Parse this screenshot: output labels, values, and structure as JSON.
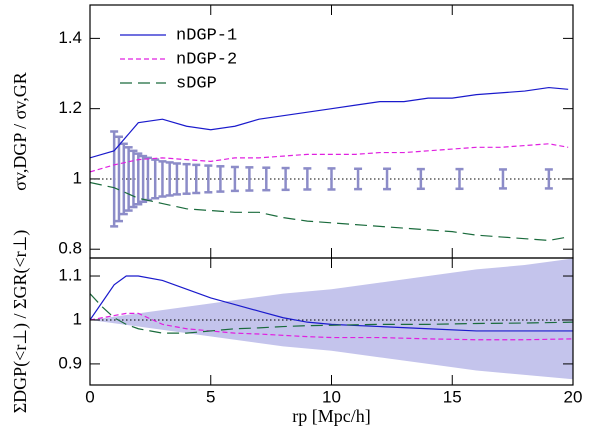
{
  "chart_data": [
    {
      "type": "line",
      "y_label": "σv,DGP / σv,GR",
      "x": [
        0,
        1,
        2,
        3,
        4,
        5,
        6,
        7,
        8,
        9,
        10,
        11,
        12,
        13,
        14,
        15,
        16,
        17,
        18,
        19,
        19.8
      ],
      "series": [
        {
          "name": "nDGP-1",
          "color": "#1a1acc",
          "linestyle": "solid",
          "values": [
            1.06,
            1.08,
            1.16,
            1.17,
            1.15,
            1.14,
            1.15,
            1.17,
            1.18,
            1.19,
            1.2,
            1.21,
            1.22,
            1.22,
            1.23,
            1.23,
            1.24,
            1.245,
            1.25,
            1.26,
            1.255
          ]
        },
        {
          "name": "nDGP-2",
          "color": "#e020e0",
          "linestyle": "short-dash",
          "values": [
            1.02,
            1.04,
            1.055,
            1.06,
            1.055,
            1.05,
            1.06,
            1.06,
            1.065,
            1.07,
            1.07,
            1.07,
            1.075,
            1.075,
            1.08,
            1.085,
            1.09,
            1.09,
            1.095,
            1.1,
            1.09
          ]
        },
        {
          "name": "sDGP",
          "color": "#1a6b3c",
          "linestyle": "long-dash",
          "values": [
            0.99,
            0.975,
            0.945,
            0.93,
            0.915,
            0.91,
            0.905,
            0.905,
            0.89,
            0.88,
            0.875,
            0.87,
            0.865,
            0.86,
            0.855,
            0.85,
            0.84,
            0.835,
            0.83,
            0.825,
            0.835
          ]
        }
      ],
      "error_bars": {
        "color": "#8c8cc8",
        "x": [
          1.0,
          1.2,
          1.4,
          1.6,
          1.8,
          2.0,
          2.2,
          2.4,
          2.7,
          3.0,
          3.3,
          3.6,
          4.0,
          4.4,
          4.9,
          5.4,
          6.0,
          6.6,
          7.3,
          8.1,
          9.0,
          10.0,
          11.1,
          12.3,
          13.7,
          15.3,
          17.1,
          19.0
        ],
        "values": [
          1,
          1,
          1,
          1,
          1,
          1,
          1,
          1,
          1,
          1,
          1,
          1,
          1,
          1,
          1,
          1,
          1,
          1,
          1,
          1,
          1,
          1,
          1,
          1,
          1,
          1,
          1,
          1
        ],
        "errors": [
          0.135,
          0.12,
          0.1,
          0.09,
          0.08,
          0.072,
          0.065,
          0.06,
          0.055,
          0.05,
          0.047,
          0.044,
          0.042,
          0.04,
          0.038,
          0.036,
          0.034,
          0.033,
          0.032,
          0.031,
          0.03,
          0.03,
          0.029,
          0.029,
          0.028,
          0.028,
          0.027,
          0.027
        ]
      },
      "reference_line": 1,
      "xlim": [
        0,
        20
      ],
      "xticks": [
        0,
        5,
        10,
        15,
        20
      ],
      "ylim": [
        0.775,
        1.495
      ],
      "yticks": [
        0.8,
        1,
        1.2,
        1.4
      ],
      "legend": "upper left"
    },
    {
      "type": "line",
      "x_label": "rp [Mpc/h]",
      "y_label": "ΣDGP(<r⊥) / ΣGR(<r⊥)",
      "x": [
        0,
        0.5,
        1,
        1.5,
        2,
        3,
        4,
        5,
        6,
        7,
        8,
        9,
        10,
        12,
        14,
        16,
        18,
        20
      ],
      "series": [
        {
          "name": "nDGP-1",
          "color": "#1a1acc",
          "linestyle": "solid",
          "values": [
            1.0,
            1.04,
            1.08,
            1.1,
            1.1,
            1.09,
            1.07,
            1.05,
            1.035,
            1.02,
            1.005,
            0.995,
            0.99,
            0.985,
            0.98,
            0.975,
            0.975,
            0.975
          ]
        },
        {
          "name": "nDGP-2",
          "color": "#e020e0",
          "linestyle": "short-dash",
          "values": [
            1.0,
            1.005,
            1.01,
            1.015,
            1.015,
            0.99,
            0.98,
            0.975,
            0.97,
            0.968,
            0.965,
            0.962,
            0.96,
            0.96,
            0.957,
            0.955,
            0.955,
            0.957
          ]
        },
        {
          "name": "sDGP",
          "color": "#1a6b3c",
          "linestyle": "long-dash",
          "values": [
            1.06,
            1.03,
            1.005,
            0.99,
            0.98,
            0.97,
            0.97,
            0.975,
            0.98,
            0.982,
            0.985,
            0.987,
            0.988,
            0.99,
            0.99,
            0.992,
            0.993,
            0.995
          ]
        }
      ],
      "band": {
        "color": "#c4c4ec",
        "x": [
          0,
          2,
          4,
          6,
          8,
          10,
          12,
          14,
          16,
          18,
          20
        ],
        "upper": [
          1.0,
          1.015,
          1.03,
          1.045,
          1.06,
          1.07,
          1.085,
          1.1,
          1.115,
          1.125,
          1.14
        ],
        "lower": [
          1.0,
          0.985,
          0.97,
          0.955,
          0.94,
          0.93,
          0.915,
          0.9,
          0.885,
          0.875,
          0.865
        ]
      },
      "reference_line": 1,
      "xlim": [
        0,
        20
      ],
      "xticks": [
        0,
        5,
        10,
        15,
        20
      ],
      "ylim": [
        0.852,
        1.141
      ],
      "yticks": [
        0.9,
        1,
        1.1
      ]
    }
  ]
}
